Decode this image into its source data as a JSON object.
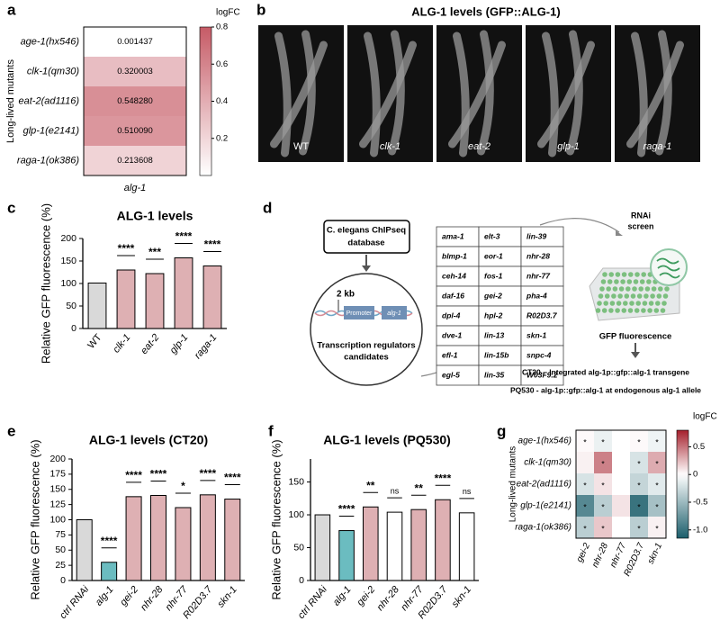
{
  "panel_labels": [
    "a",
    "b",
    "c",
    "d",
    "e",
    "f",
    "g"
  ],
  "chart_data": [
    {
      "type": "heatmap",
      "ylabel": "Long-lived mutants",
      "rows": [
        "age-1(hx546)",
        "clk-1(qm30)",
        "eat-2(ad1116)",
        "glp-1(e2141)",
        "raga-1(ok386)"
      ],
      "columns": [
        "alg-1"
      ],
      "values": [
        [
          0.001437
        ],
        [
          0.320003
        ],
        [
          0.54828
        ],
        [
          0.51009
        ],
        [
          0.213608
        ]
      ],
      "value_labels": [
        [
          "0.001437"
        ],
        [
          "0.320003"
        ],
        [
          "0.548280"
        ],
        [
          "0.510090"
        ],
        [
          "0.213608"
        ]
      ],
      "colorbar_label": "logFC",
      "clim": [
        0,
        0.8
      ],
      "cticks": [
        0.2,
        0.4,
        0.6,
        0.8
      ],
      "colors": [
        "#ffffff",
        "#c65b66"
      ]
    },
    {
      "type": "bar",
      "title": "ALG-1 levels",
      "ylabel": "Relative GFP fluorescence (%)",
      "categories": [
        "WT",
        "clk-1",
        "eat-2",
        "glp-1",
        "raga-1"
      ],
      "values": [
        101,
        130,
        122,
        157,
        139
      ],
      "colors": [
        "#d9d9d9",
        "#deb0b3",
        "#deb0b3",
        "#deb0b3",
        "#deb0b3"
      ],
      "significance": [
        null,
        "****",
        "***",
        "****",
        "****"
      ],
      "ylim": [
        0,
        200
      ],
      "yticks": [
        0,
        50,
        100,
        150,
        200
      ]
    },
    {
      "type": "bar",
      "title": "ALG-1 levels (CT20)",
      "ylabel": "Relative GFP fluorescence (%)",
      "categories": [
        "ctrl RNAi",
        "alg-1",
        "gei-2",
        "nhr-28",
        "nhr-77",
        "R02D3.7",
        "skn-1"
      ],
      "values": [
        100,
        30,
        138,
        140,
        120,
        141,
        134
      ],
      "colors": [
        "#d9d9d9",
        "#6bbcc0",
        "#deb0b3",
        "#deb0b3",
        "#deb0b3",
        "#deb0b3",
        "#deb0b3"
      ],
      "significance": [
        null,
        "****",
        "****",
        "****",
        "*",
        "****",
        "****"
      ],
      "ylim": [
        0,
        200
      ],
      "yticks": [
        0,
        25,
        50,
        75,
        100,
        125,
        150,
        175,
        200
      ]
    },
    {
      "type": "bar",
      "title": "ALG-1 levels (PQ530)",
      "ylabel": "Relative GFP fluorescence (%)",
      "categories": [
        "ctrl RNAi",
        "alg-1",
        "gei-2",
        "nhr-28",
        "nhr-77",
        "R02D3.7",
        "skn-1"
      ],
      "values": [
        100,
        76,
        112,
        104,
        108,
        123,
        103
      ],
      "colors": [
        "#d9d9d9",
        "#6bbcc0",
        "#deb0b3",
        "#ffffff",
        "#deb0b3",
        "#deb0b3",
        "#ffffff"
      ],
      "significance": [
        null,
        "****",
        "**",
        "ns",
        "**",
        "****",
        "ns"
      ],
      "ylim": [
        0,
        185
      ],
      "yticks": [
        0,
        50,
        100,
        150
      ]
    },
    {
      "type": "heatmap",
      "ylabel": "Long-lived mutants",
      "rows": [
        "age-1(hx546)",
        "clk-1(qm30)",
        "eat-2(ad1116)",
        "glp-1(e2141)",
        "raga-1(ok386)"
      ],
      "columns": [
        "gei-2",
        "nhr-28",
        "nhr-77",
        "R02D3.7",
        "skn-1"
      ],
      "values": [
        [
          0.02,
          -0.1,
          0,
          0.02,
          -0.08
        ],
        [
          0.05,
          0.45,
          0,
          -0.2,
          0.3
        ],
        [
          -0.2,
          0.1,
          0,
          -0.3,
          -0.15
        ],
        [
          -0.85,
          -0.35,
          0.1,
          -1.0,
          -0.45
        ],
        [
          -0.35,
          0.2,
          0,
          -0.35,
          0.05
        ]
      ],
      "cell_labels": [
        [
          "*",
          "*",
          null,
          "*",
          "*"
        ],
        [
          null,
          "*",
          null,
          "*",
          "*"
        ],
        [
          "*",
          "*",
          null,
          "*",
          "*"
        ],
        [
          "*",
          "*",
          null,
          "*",
          "*"
        ],
        [
          "*",
          "*",
          null,
          "*",
          "*"
        ]
      ],
      "colorbar_label": "logFC",
      "clim": [
        -1.15,
        0.8
      ],
      "cticks": [
        0.5,
        0,
        -0.5,
        {
          "value": -1.0,
          "label": "-1.0"
        }
      ],
      "colors": [
        "#1b5e6b",
        "#ffffff",
        "#a51f2b"
      ]
    }
  ],
  "panel_b": {
    "title": "ALG-1 levels (GFP::ALG-1)",
    "images": [
      "WT",
      "clk-1",
      "eat-2",
      "glp-1",
      "raga-1"
    ]
  },
  "panel_d": {
    "database": [
      "C. elegans ChIPseq",
      "database"
    ],
    "scale": "2 kb",
    "promoter": "Promoter",
    "gene": "alg-1",
    "candidates": [
      "Transcription regulators",
      "candidates"
    ],
    "genes": [
      [
        "ama-1",
        "elt-3",
        "lin-39"
      ],
      [
        "blmp-1",
        "eor-1",
        "nhr-28"
      ],
      [
        "ceh-14",
        "fos-1",
        "nhr-77"
      ],
      [
        "daf-16",
        "gei-2",
        "pha-4"
      ],
      [
        "dpl-4",
        "hpl-2",
        "R02D3.7"
      ],
      [
        "dve-1",
        "lin-13",
        "skn-1"
      ],
      [
        "efl-1",
        "lin-15b",
        "snpc-4"
      ],
      [
        "egl-5",
        "lin-35",
        "W03F9.2"
      ]
    ],
    "screen": [
      "RNAi",
      "screen"
    ],
    "readout": "GFP fluorescence",
    "strains": [
      "CT20 – Integrated alg-1p::gfp::alg-1 transgene",
      "PQ530 - alg-1p::gfp::alg-1 at endogenous alg-1 allele"
    ]
  }
}
